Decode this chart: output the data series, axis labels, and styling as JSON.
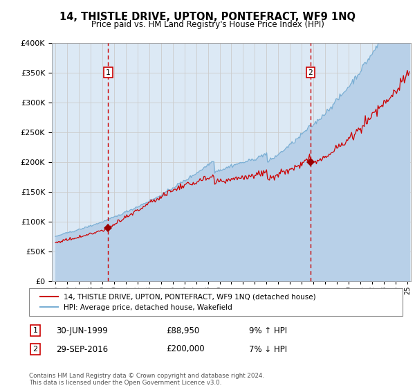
{
  "title": "14, THISTLE DRIVE, UPTON, PONTEFRACT, WF9 1NQ",
  "subtitle": "Price paid vs. HM Land Registry's House Price Index (HPI)",
  "legend_property": "14, THISTLE DRIVE, UPTON, PONTEFRACT, WF9 1NQ (detached house)",
  "legend_hpi": "HPI: Average price, detached house, Wakefield",
  "footnote": "Contains HM Land Registry data © Crown copyright and database right 2024.\nThis data is licensed under the Open Government Licence v3.0.",
  "marker1_date": "30-JUN-1999",
  "marker1_price": "£88,950",
  "marker1_hpi": "9% ↑ HPI",
  "marker2_date": "29-SEP-2016",
  "marker2_price": "£200,000",
  "marker2_hpi": "7% ↓ HPI",
  "sale1_year": 1999.5,
  "sale1_value": 88950,
  "sale2_year": 2016.75,
  "sale2_value": 200000,
  "ylim": [
    0,
    400000
  ],
  "xlim_start": 1994.7,
  "xlim_end": 2025.3,
  "bg_color": "#dce9f5",
  "line_color_property": "#cc0000",
  "line_color_hpi": "#7bafd4",
  "fill_color_hpi": "#b8d0e8",
  "marker_color": "#990000",
  "grid_color": "#cccccc",
  "vline_color": "#cc0000",
  "box_color": "#cc0000"
}
